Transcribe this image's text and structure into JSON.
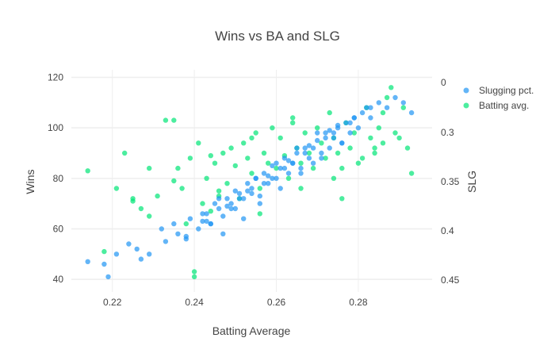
{
  "chart_data": {
    "type": "scatter",
    "title": "Wins vs BA and SLG",
    "xlabel": "Batting Average",
    "ylabel": "Wins",
    "y2label": "SLG",
    "xlim": [
      0.21,
      0.298
    ],
    "ylim": [
      35,
      123
    ],
    "y2lim": [
      0.2928,
      0.3008
    ],
    "y2_tick_values": [
      0,
      0.3,
      0.35,
      0.4,
      0.45
    ],
    "y2_tick_labels": [
      "0",
      "0.3",
      "0.35",
      "0.4",
      "0.45"
    ],
    "x_ticks": [
      0.22,
      0.24,
      0.26,
      0.28
    ],
    "x_tick_labels": [
      "0.22",
      "0.24",
      "0.26",
      "0.28"
    ],
    "y_ticks": [
      40,
      60,
      80,
      100,
      120
    ],
    "y_tick_labels": [
      "40",
      "60",
      "80",
      "100",
      "120"
    ],
    "grid": true,
    "legend_position": "top-right",
    "series": [
      {
        "name": "Slugging pct.",
        "color": "#2196F3",
        "x": [
          0.214,
          0.218,
          0.219,
          0.221,
          0.224,
          0.226,
          0.227,
          0.229,
          0.232,
          0.233,
          0.235,
          0.236,
          0.238,
          0.239,
          0.241,
          0.242,
          0.243,
          0.244,
          0.245,
          0.246,
          0.247,
          0.248,
          0.249,
          0.25,
          0.25,
          0.251,
          0.252,
          0.253,
          0.254,
          0.255,
          0.256,
          0.257,
          0.258,
          0.259,
          0.26,
          0.261,
          0.262,
          0.263,
          0.264,
          0.265,
          0.266,
          0.267,
          0.268,
          0.269,
          0.27,
          0.271,
          0.272,
          0.273,
          0.274,
          0.275,
          0.276,
          0.277,
          0.278,
          0.279,
          0.28,
          0.281,
          0.282,
          0.283,
          0.285,
          0.287,
          0.289,
          0.291,
          0.293,
          0.247,
          0.252,
          0.256,
          0.261,
          0.266,
          0.271,
          0.276,
          0.244,
          0.249,
          0.254,
          0.259,
          0.264,
          0.269,
          0.274,
          0.279,
          0.238,
          0.243,
          0.248,
          0.253,
          0.258,
          0.263,
          0.268,
          0.273,
          0.278,
          0.283,
          0.251,
          0.257,
          0.262,
          0.267,
          0.272,
          0.242,
          0.246,
          0.255,
          0.26,
          0.265,
          0.27,
          0.275
        ],
        "y": [
          47,
          46,
          41,
          50,
          54,
          52,
          48,
          50,
          60,
          55,
          62,
          58,
          56,
          64,
          60,
          63,
          66,
          62,
          70,
          68,
          65,
          72,
          70,
          75,
          68,
          74,
          72,
          78,
          76,
          80,
          73,
          82,
          78,
          85,
          80,
          84,
          88,
          82,
          86,
          90,
          84,
          92,
          88,
          86,
          95,
          90,
          98,
          92,
          96,
          100,
          94,
          102,
          98,
          104,
          100,
          106,
          108,
          104,
          110,
          108,
          112,
          110,
          106,
          58,
          64,
          70,
          76,
          82,
          88,
          94,
          62,
          68,
          74,
          80,
          86,
          92,
          98,
          104,
          57,
          63,
          69,
          75,
          81,
          87,
          93,
          99,
          102,
          108,
          72,
          78,
          84,
          90,
          96,
          66,
          72,
          80,
          86,
          92,
          98,
          101
        ]
      },
      {
        "name": "Batting avg.",
        "color": "#00E676",
        "x": [
          0.214,
          0.218,
          0.221,
          0.223,
          0.225,
          0.227,
          0.229,
          0.231,
          0.233,
          0.235,
          0.236,
          0.237,
          0.238,
          0.239,
          0.24,
          0.241,
          0.242,
          0.243,
          0.244,
          0.245,
          0.246,
          0.247,
          0.248,
          0.249,
          0.25,
          0.251,
          0.252,
          0.253,
          0.254,
          0.255,
          0.256,
          0.257,
          0.258,
          0.259,
          0.26,
          0.261,
          0.262,
          0.263,
          0.264,
          0.265,
          0.266,
          0.267,
          0.268,
          0.269,
          0.27,
          0.271,
          0.272,
          0.273,
          0.274,
          0.275,
          0.276,
          0.277,
          0.278,
          0.279,
          0.28,
          0.281,
          0.282,
          0.283,
          0.284,
          0.285,
          0.286,
          0.287,
          0.288,
          0.289,
          0.29,
          0.291,
          0.292,
          0.293,
          0.24,
          0.235,
          0.225,
          0.229,
          0.244,
          0.254,
          0.264,
          0.274,
          0.284,
          0.246,
          0.256,
          0.266,
          0.276,
          0.286
        ],
        "y": [
          83,
          51,
          76,
          90,
          71,
          68,
          65,
          73,
          103,
          79,
          84,
          76,
          62,
          88,
          43,
          94,
          70,
          80,
          67,
          86,
          75,
          90,
          78,
          92,
          85,
          72,
          94,
          88,
          82,
          98,
          76,
          90,
          86,
          100,
          84,
          96,
          89,
          80,
          104,
          92,
          86,
          98,
          90,
          84,
          100,
          94,
          88,
          106,
          96,
          90,
          84,
          102,
          92,
          98,
          86,
          88,
          108,
          96,
          90,
          100,
          94,
          112,
          116,
          98,
          96,
          108,
          92,
          82,
          41,
          103,
          72,
          84,
          89,
          96,
          102,
          80,
          92,
          73,
          66,
          76,
          72,
          106
        ]
      }
    ]
  }
}
